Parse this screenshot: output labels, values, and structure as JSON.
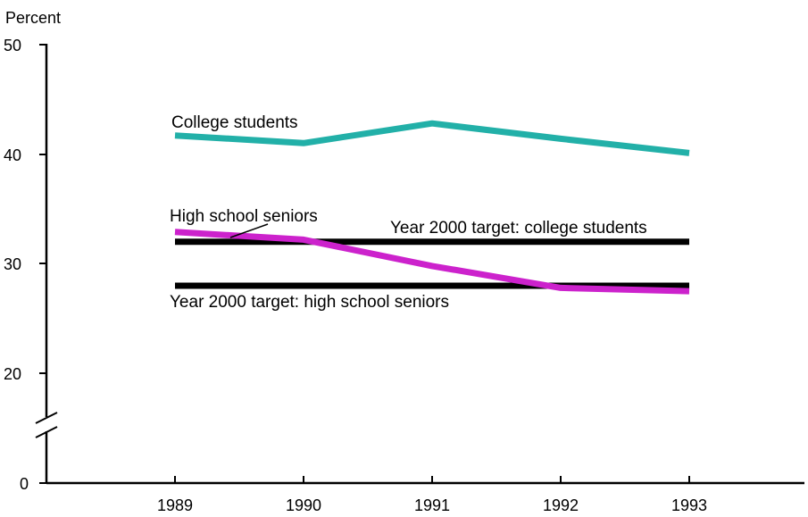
{
  "chart_data": {
    "type": "line",
    "ylabel": "Percent",
    "x": [
      "1989",
      "1990",
      "1991",
      "1992",
      "1993"
    ],
    "y_ticks": [
      "0",
      "20",
      "30",
      "40",
      "50"
    ],
    "y_axis_break": "between 0 and 20",
    "grid": false,
    "series": [
      {
        "name": "College students",
        "color": "#22b0a8",
        "values": [
          41.7,
          41.0,
          42.8,
          41.4,
          40.1
        ]
      },
      {
        "name": "High school seniors",
        "color": "#cc22cc",
        "values": [
          32.9,
          32.2,
          29.8,
          27.8,
          27.5
        ]
      },
      {
        "name": "Year 2000 target: college students",
        "color": "#000000",
        "values": [
          32,
          32,
          32,
          32,
          32
        ]
      },
      {
        "name": "Year 2000 target: high school seniors",
        "color": "#000000",
        "values": [
          28,
          28,
          28,
          28,
          28
        ]
      }
    ]
  }
}
